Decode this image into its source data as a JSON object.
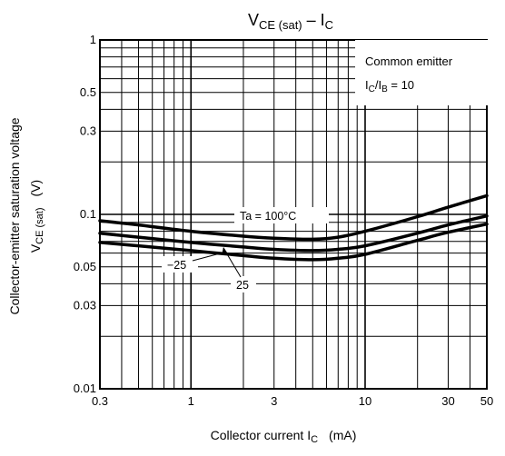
{
  "chart_data": {
    "type": "line",
    "title": {
      "main": "V",
      "sub1": "CE (sat)",
      "mid": " – I",
      "sub2": "C"
    },
    "xlabel": {
      "main": "Collector current  I",
      "sub": "C",
      "unit": "(mA)"
    },
    "ylabel": {
      "line1": "Collector-emitter saturation voltage",
      "main": "V",
      "sub": "CE (sat)",
      "unit": "(V)"
    },
    "x_scale": "log",
    "y_scale": "log",
    "xlim": [
      0.3,
      50
    ],
    "ylim": [
      0.01,
      1
    ],
    "x_ticks": [
      {
        "value": 0.3,
        "label": "0.3"
      },
      {
        "value": 1,
        "label": "1"
      },
      {
        "value": 3,
        "label": "3"
      },
      {
        "value": 10,
        "label": "10"
      },
      {
        "value": 30,
        "label": "30"
      },
      {
        "value": 50,
        "label": "50"
      }
    ],
    "y_ticks": [
      {
        "value": 1,
        "label": "1"
      },
      {
        "value": 0.5,
        "label": "0.5"
      },
      {
        "value": 0.3,
        "label": "0.3"
      },
      {
        "value": 0.1,
        "label": "0.1"
      },
      {
        "value": 0.05,
        "label": "0.05"
      },
      {
        "value": 0.03,
        "label": "0.03"
      },
      {
        "value": 0.01,
        "label": "0.01"
      }
    ],
    "grid": true,
    "conditions": {
      "line1": "Common emitter",
      "line2_main": "I",
      "line2_sub1": "C",
      "line2_mid": "/I",
      "line2_sub2": "B",
      "line2_end": " = 10"
    },
    "series": [
      {
        "name": "Ta = 100°C",
        "x": [
          0.3,
          0.5,
          1,
          2,
          3,
          5,
          7,
          10,
          20,
          30,
          50
        ],
        "y": [
          0.092,
          0.087,
          0.08,
          0.075,
          0.073,
          0.072,
          0.074,
          0.08,
          0.097,
          0.11,
          0.128
        ]
      },
      {
        "name": "25",
        "x": [
          0.3,
          0.5,
          1,
          2,
          3,
          5,
          7,
          10,
          20,
          30,
          50
        ],
        "y": [
          0.078,
          0.074,
          0.069,
          0.065,
          0.063,
          0.062,
          0.063,
          0.066,
          0.078,
          0.087,
          0.098
        ]
      },
      {
        "name": "−25",
        "x": [
          0.3,
          0.5,
          1,
          2,
          3,
          5,
          7,
          10,
          20,
          30,
          50
        ],
        "y": [
          0.069,
          0.066,
          0.062,
          0.058,
          0.056,
          0.055,
          0.056,
          0.059,
          0.071,
          0.079,
          0.088
        ]
      }
    ]
  }
}
